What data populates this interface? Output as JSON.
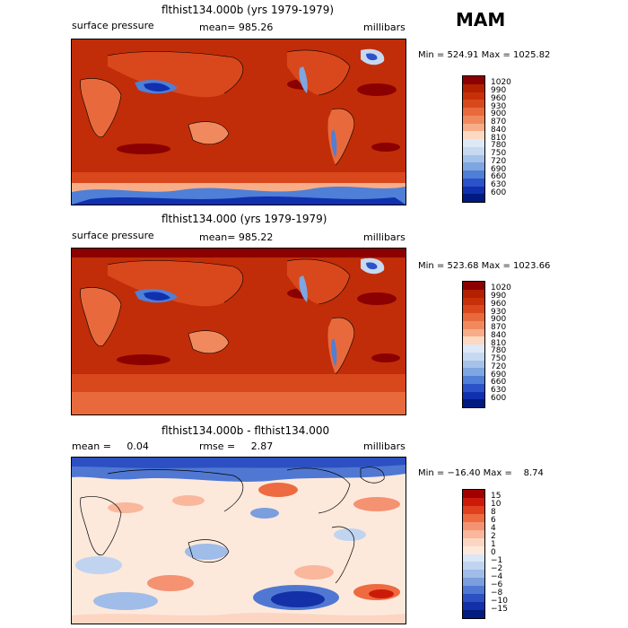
{
  "season": "MAM",
  "panels": [
    {
      "title": "flthist134.000b (yrs 1979-1979)",
      "left_label": "surface pressure",
      "center_label": "mean= 985.26",
      "right_label": "millibars",
      "minmax": "Min = 524.91 Max = 1025.82",
      "colorbar": {
        "levels": [
          "1020",
          "990",
          "960",
          "930",
          "900",
          "870",
          "840",
          "810",
          "780",
          "750",
          "720",
          "690",
          "660",
          "630",
          "600"
        ],
        "colors": [
          "#8b0000",
          "#b22000",
          "#c8300a",
          "#d9481c",
          "#e86a3c",
          "#f08a5e",
          "#f6ad88",
          "#fbd9c3",
          "#dde9f7",
          "#c6d9f1",
          "#a5c2ea",
          "#7ea6e0",
          "#4f7fd6",
          "#2b52c8",
          "#1030b0",
          "#001a80"
        ]
      }
    },
    {
      "title": "flthist134.000 (yrs 1979-1979)",
      "left_label": "surface pressure",
      "center_label": "mean= 985.22",
      "right_label": "millibars",
      "minmax": "Min = 523.68 Max = 1023.66",
      "colorbar": {
        "levels": [
          "1020",
          "990",
          "960",
          "930",
          "900",
          "870",
          "840",
          "810",
          "780",
          "750",
          "720",
          "690",
          "660",
          "630",
          "600"
        ],
        "colors": [
          "#8b0000",
          "#b22000",
          "#c8300a",
          "#d9481c",
          "#e86a3c",
          "#f08a5e",
          "#f6ad88",
          "#fbd9c3",
          "#dde9f7",
          "#c6d9f1",
          "#a5c2ea",
          "#7ea6e0",
          "#4f7fd6",
          "#2b52c8",
          "#1030b0",
          "#001a80"
        ]
      }
    },
    {
      "title": "flthist134.000b - flthist134.000",
      "left_label": "mean =     0.04",
      "center_label": "rmse =     2.87",
      "right_label": "millibars",
      "minmax": "Min = −16.40 Max =    8.74",
      "colorbar": {
        "levels": [
          "15",
          "10",
          "8",
          "6",
          "4",
          "2",
          "1",
          "0",
          "−1",
          "−2",
          "−4",
          "−6",
          "−8",
          "−10",
          "−15"
        ],
        "colors": [
          "#a00000",
          "#cc1a0a",
          "#e0401e",
          "#ee6a40",
          "#f59272",
          "#f9b79c",
          "#fcd6c2",
          "#fde9dc",
          "#dbe6f6",
          "#c0d4f0",
          "#a0bce8",
          "#7a9ede",
          "#5078d2",
          "#2c50c2",
          "#1430a8",
          "#001c80"
        ]
      }
    }
  ]
}
